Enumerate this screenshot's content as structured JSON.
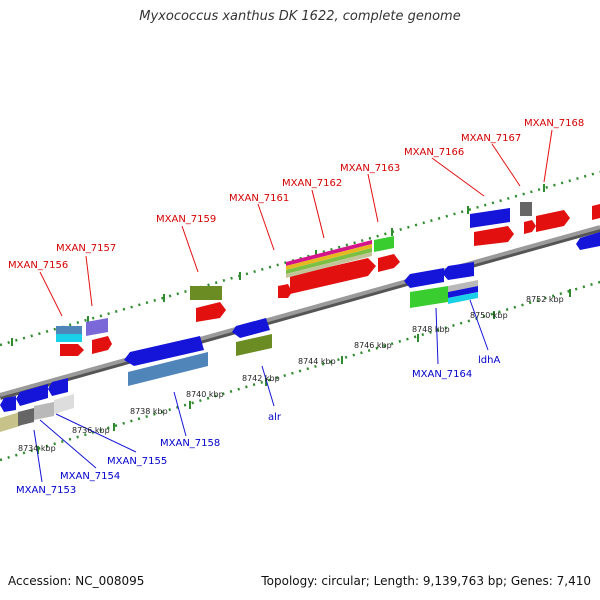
{
  "title": "Myxococcus xanthus DK 1622, complete genome",
  "accession_text": "Accession: NC_008095",
  "summary_text": "Topology: circular; Length: 9,139,763 bp; Genes: 7,410",
  "colors": {
    "red": "#e31010",
    "blue": "#1515d9",
    "green_olive": "#6b8c22",
    "steel_blue": "#4f85b8",
    "purple": "#7b68d8",
    "cyan": "#1ad0e8",
    "lime": "#3acd2f",
    "gray_dark": "#666666",
    "gray_light": "#b9b9b9",
    "khaki": "#c7c28a",
    "axis": "#8a8a8a",
    "dots": "#2e8b2e",
    "label_red": "#d40000",
    "label_blue": "#0000cc"
  },
  "kbp_ticks": [
    "8734 kbp",
    "8736 kbp",
    "8738 kbp",
    "8740 kbp",
    "8742 kbp",
    "8744 kbp",
    "8746 kbp",
    "8748 kbp",
    "8750 kbp",
    "8752 kbp"
  ],
  "top_labels": [
    "MXAN_7156",
    "MXAN_7157",
    "MXAN_7159",
    "MXAN_7161",
    "MXAN_7162",
    "MXAN_7163",
    "MXAN_7166",
    "MXAN_7167",
    "MXAN_7168"
  ],
  "bottom_labels": [
    "MXAN_7153",
    "MXAN_7154",
    "MXAN_7155",
    "MXAN_7158",
    "alr",
    "MXAN_7164",
    "ldhA"
  ]
}
